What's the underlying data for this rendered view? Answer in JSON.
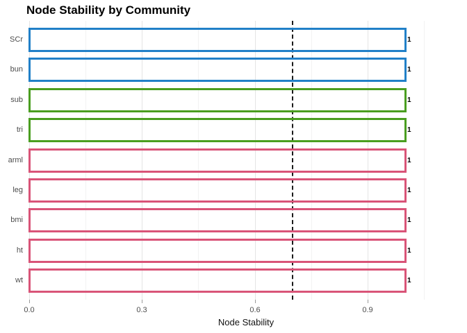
{
  "chart_data": {
    "type": "bar",
    "orientation": "horizontal",
    "title": "Node Stability by Community",
    "xlabel": "Node Stability",
    "x_ticks": [
      "0.0",
      "0.3",
      "0.6",
      "0.9"
    ],
    "x_tick_values": [
      0.0,
      0.3,
      0.6,
      0.9
    ],
    "xlim": [
      -0.05,
      1.05
    ],
    "grid": true,
    "legend_position": "none",
    "bar_fill": "transparent",
    "reference_line": {
      "value": 0.7,
      "style": "dashed",
      "color": "#1a1a1a"
    },
    "minor_grid_values": [
      0.15,
      0.45,
      0.75,
      1.05
    ],
    "community_colors": {
      "community_blue": "#2180c8",
      "community_green": "#4a9e20",
      "community_pink": "#d95478"
    },
    "rows": [
      {
        "label": "SCr",
        "value": 1,
        "value_label": "1",
        "color": "#2180c8"
      },
      {
        "label": "bun",
        "value": 1,
        "value_label": "1",
        "color": "#2180c8"
      },
      {
        "label": "sub",
        "value": 1,
        "value_label": "1",
        "color": "#4a9e20"
      },
      {
        "label": "tri",
        "value": 1,
        "value_label": "1",
        "color": "#4a9e20"
      },
      {
        "label": "arml",
        "value": 1,
        "value_label": "1",
        "color": "#d95478"
      },
      {
        "label": "leg",
        "value": 1,
        "value_label": "1",
        "color": "#d95478"
      },
      {
        "label": "bmi",
        "value": 1,
        "value_label": "1",
        "color": "#d95478"
      },
      {
        "label": "ht",
        "value": 1,
        "value_label": "1",
        "color": "#d95478"
      },
      {
        "label": "wt",
        "value": 1,
        "value_label": "1",
        "color": "#d95478"
      }
    ]
  }
}
